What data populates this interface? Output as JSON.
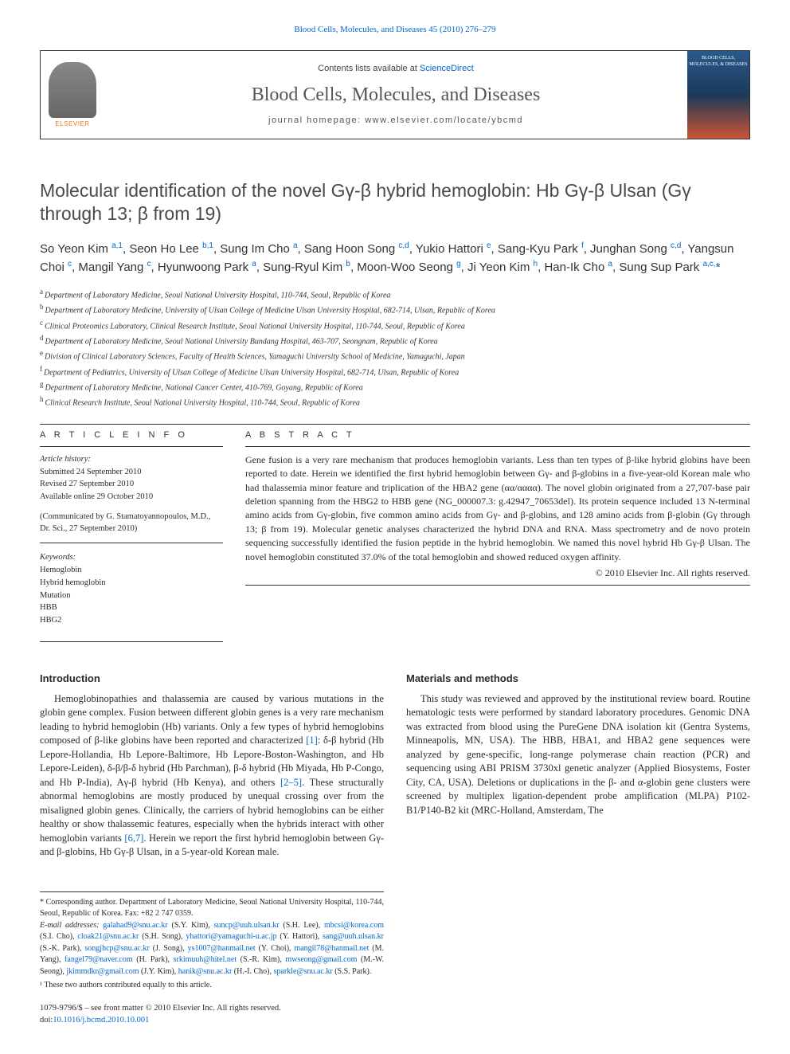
{
  "top_citation": "Blood Cells, Molecules, and Diseases 45 (2010) 276–279",
  "header": {
    "contents_prefix": "Contents lists available at ",
    "contents_link": "ScienceDirect",
    "journal_title": "Blood Cells, Molecules, and Diseases",
    "homepage_prefix": "journal homepage: ",
    "homepage_url": "www.elsevier.com/locate/ybcmd",
    "elsevier_label": "ELSEVIER",
    "cover_text": "BLOOD CELLS, MOLECULES, & DISEASES"
  },
  "article": {
    "title": "Molecular identification of the novel Gγ-β hybrid hemoglobin: Hb Gγ-β Ulsan (Gγ through 13; β from 19)",
    "authors_html": "So Yeon Kim <a class='aff'>a,1</a>, Seon Ho Lee <a class='aff'>b,1</a>, Sung Im Cho <a class='aff'>a</a>, Sang Hoon Song <a class='aff'>c,d</a>, Yukio Hattori <a class='aff'>e</a>, Sang-Kyu Park <a class='aff'>f</a>, Junghan Song <a class='aff'>c,d</a>, Yangsun Choi <a class='aff'>c</a>, Mangil Yang <a class='aff'>c</a>, Hyunwoong Park <a class='aff'>a</a>, Sung-Ryul Kim <a class='aff'>b</a>, Moon-Woo Seong <a class='aff'>g</a>, Ji Yeon Kim <a class='aff'>h</a>, Han-Ik Cho <a class='aff'>a</a>, Sung Sup Park <a class='aff'>a,c,</a><span class='star'>*</span>",
    "affiliations": [
      {
        "label": "a",
        "text": "Department of Laboratory Medicine, Seoul National University Hospital, 110-744, Seoul, Republic of Korea"
      },
      {
        "label": "b",
        "text": "Department of Laboratory Medicine, University of Ulsan College of Medicine Ulsan University Hospital, 682-714, Ulsan, Republic of Korea"
      },
      {
        "label": "c",
        "text": "Clinical Proteomics Laboratory, Clinical Research Institute, Seoul National University Hospital, 110-744, Seoul, Republic of Korea"
      },
      {
        "label": "d",
        "text": "Department of Laboratory Medicine, Seoul National University Bundang Hospital, 463-707, Seongnam, Republic of Korea"
      },
      {
        "label": "e",
        "text": "Division of Clinical Laboratory Sciences, Faculty of Health Sciences, Yamaguchi University School of Medicine, Yamaguchi, Japan"
      },
      {
        "label": "f",
        "text": "Department of Pediatrics, University of Ulsan College of Medicine Ulsan University Hospital, 682-714, Ulsan, Republic of Korea"
      },
      {
        "label": "g",
        "text": "Department of Laboratory Medicine, National Cancer Center, 410-769, Goyang, Republic of Korea"
      },
      {
        "label": "h",
        "text": "Clinical Research Institute, Seoul National University Hospital, 110-744, Seoul, Republic of Korea"
      }
    ]
  },
  "info": {
    "label": "A R T I C L E   I N F O",
    "history_label": "Article history:",
    "submitted": "Submitted 24 September 2010",
    "revised": "Revised 27 September 2010",
    "online": "Available online 29 October 2010",
    "communicated": "(Communicated by G. Stamatoyannopoulos, M.D., Dr. Sci., 27 September 2010)",
    "keywords_label": "Keywords:",
    "keywords": [
      "Hemoglobin",
      "Hybrid hemoglobin",
      "Mutation",
      "HBB",
      "HBG2"
    ]
  },
  "abstract": {
    "label": "A B S T R A C T",
    "text": "Gene fusion is a very rare mechanism that produces hemoglobin variants. Less than ten types of β-like hybrid globins have been reported to date. Herein we identified the first hybrid hemoglobin between Gγ- and β-globins in a five-year-old Korean male who had thalassemia minor feature and triplication of the HBA2 gene (αα/αααα). The novel globin originated from a 27,707-base pair deletion spanning from the HBG2 to HBB gene (NG_000007.3: g.42947_70653del). Its protein sequence included 13 N-terminal amino acids from Gγ-globin, five common amino acids from Gγ- and β-globins, and 128 amino acids from β-globin (Gγ through 13; β from 19). Molecular genetic analyses characterized the hybrid DNA and RNA. Mass spectrometry and de novo protein sequencing successfully identified the fusion peptide in the hybrid hemoglobin. We named this novel hybrid Hb Gγ-β Ulsan. The novel hemoglobin constituted 37.0% of the total hemoglobin and showed reduced oxygen affinity.",
    "copyright": "© 2010 Elsevier Inc. All rights reserved."
  },
  "body": {
    "intro_heading": "Introduction",
    "intro_p1": "Hemoglobinopathies and thalassemia are caused by various mutations in the globin gene complex. Fusion between different globin genes is a very rare mechanism leading to hybrid hemoglobin (Hb) variants. Only a few types of hybrid hemoglobins composed of β-like globins have been reported and characterized ",
    "intro_ref1": "[1]",
    "intro_p1b": ": δ-β hybrid (Hb Lepore-Hollandia, Hb Lepore-Baltimore, Hb Lepore-Boston-Washington, and Hb Lepore-Leiden), δ-β/β-δ hybrid (Hb Parchman), β-δ hybrid (Hb Miyada, Hb P-Congo, and Hb P-India), Aγ-β hybrid (Hb Kenya), and others ",
    "intro_ref2": "[2–5]",
    "intro_p1c": ". ",
    "intro_p2a": "These structurally abnormal hemoglobins are mostly produced by unequal crossing over from the misaligned globin genes. Clinically, the carriers of hybrid hemoglobins can be either healthy or show thalassemic features, especially when the hybrids interact with other hemoglobin variants ",
    "intro_ref3": "[6,7]",
    "intro_p2b": ". Herein we report the first hybrid hemoglobin between Gγ- and β-globins, Hb Gγ-β Ulsan, in a 5-year-old Korean male.",
    "methods_heading": "Materials and methods",
    "methods_p1": "This study was reviewed and approved by the institutional review board. Routine hematologic tests were performed by standard laboratory procedures. Genomic DNA was extracted from blood using the PureGene DNA isolation kit (Gentra Systems, Minneapolis, MN, USA). The HBB, HBA1, and HBA2 gene sequences were analyzed by gene-specific, long-range polymerase chain reaction (PCR) and sequencing using ABI PRISM 3730xl genetic analyzer (Applied Biosystems, Foster City, CA, USA). Deletions or duplications in the β- and α-globin gene clusters were screened by multiplex ligation-dependent probe amplification (MLPA) P102-B1/P140-B2 kit (MRC-Holland, Amsterdam, The"
  },
  "footnotes": {
    "corresponding": "* Corresponding author. Department of Laboratory Medicine, Seoul National University Hospital, 110-744, Seoul, Republic of Korea. Fax: +82 2 747 0359.",
    "email_label": "E-mail addresses: ",
    "emails": [
      {
        "addr": "galahad9@snu.ac.kr",
        "who": "(S.Y. Kim)"
      },
      {
        "addr": "suncp@uuh.ulsan.kr",
        "who": "(S.H. Lee)"
      },
      {
        "addr": "mbcsi@korea.com",
        "who": "(S.I. Cho)"
      },
      {
        "addr": "cloak21@snu.ac.kr",
        "who": "(S.H. Song)"
      },
      {
        "addr": "yhattori@yamaguchi-u.ac.jp",
        "who": "(Y. Hattori)"
      },
      {
        "addr": "sang@uuh.ulsan.kr",
        "who": "(S.-K. Park)"
      },
      {
        "addr": "songjhcp@snu.ac.kr",
        "who": "(J. Song)"
      },
      {
        "addr": "ys1007@hanmail.net",
        "who": "(Y. Choi)"
      },
      {
        "addr": "mangil78@hanmail.net",
        "who": "(M. Yang)"
      },
      {
        "addr": "fangel79@naver.com",
        "who": "(H. Park)"
      },
      {
        "addr": "srkimuuh@hitel.net",
        "who": "(S.-R. Kim)"
      },
      {
        "addr": "mwseong@gmail.com",
        "who": "(M.-W. Seong)"
      },
      {
        "addr": "jkimmdkr@gmail.com",
        "who": "(J.Y. Kim)"
      },
      {
        "addr": "hanik@snu.ac.kr",
        "who": "(H.-I. Cho)"
      },
      {
        "addr": "sparkle@snu.ac.kr",
        "who": "(S.S. Park)"
      }
    ],
    "equal": "¹ These two authors contributed equally to this article."
  },
  "footer": {
    "front_matter": "1079-9796/$ – see front matter © 2010 Elsevier Inc. All rights reserved.",
    "doi_label": "doi:",
    "doi": "10.1016/j.bcmd.2010.10.001"
  },
  "colors": {
    "link": "#0066cc",
    "text": "#2a2a2a",
    "header_title": "#555555",
    "elsevier_orange": "#e67e22"
  }
}
